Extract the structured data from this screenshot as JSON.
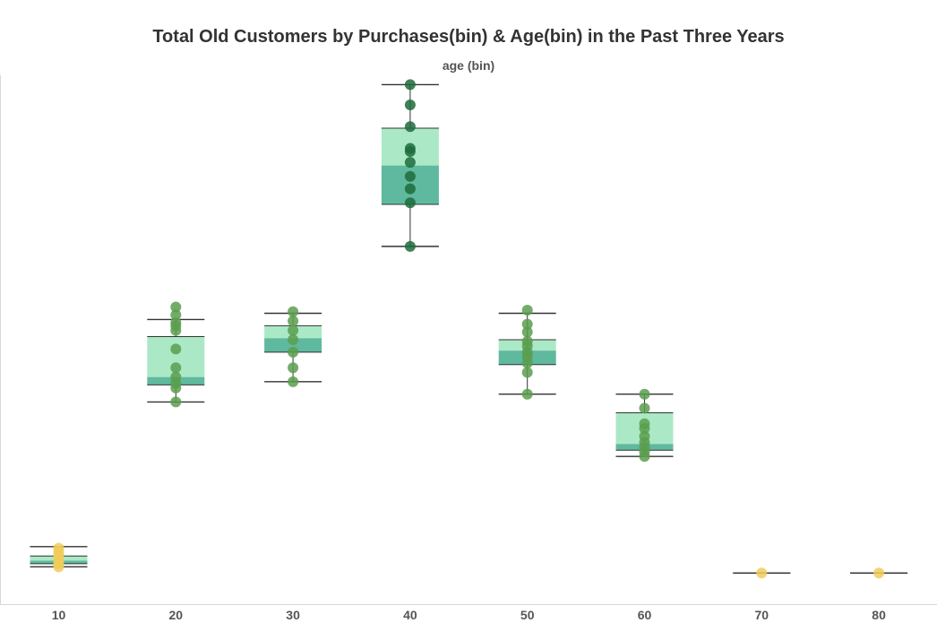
{
  "chart_data": {
    "type": "boxplot",
    "title": "Total Old Customers by Purchases(bin) & Age(bin) in the Past Three Years",
    "subtitle": "age (bin)",
    "xlabel": "",
    "ylabel": "",
    "categories": [
      "10",
      "20",
      "30",
      "40",
      "50",
      "60",
      "70",
      "80"
    ],
    "y_axis_labels_shown": false,
    "ylim": [
      0,
      34
    ],
    "boxes": [
      {
        "category": "10",
        "whisker_low": 2.4,
        "q1": 2.6,
        "median": 2.8,
        "q3": 3.1,
        "whisker_high": 3.7,
        "points": [
          2.4,
          2.6,
          2.8,
          3.0,
          3.2,
          3.4,
          3.6
        ]
      },
      {
        "category": "20",
        "whisker_low": 13.0,
        "q1": 14.1,
        "median": 14.6,
        "q3": 17.2,
        "whisker_high": 18.3,
        "points": [
          13.0,
          13.9,
          14.2,
          14.6,
          15.2,
          16.4,
          17.6,
          17.9,
          18.1,
          18.6,
          19.1
        ]
      },
      {
        "category": "30",
        "whisker_low": 14.3,
        "q1": 16.2,
        "median": 17.1,
        "q3": 17.9,
        "whisker_high": 18.7,
        "points": [
          14.3,
          15.2,
          16.2,
          17.0,
          17.6,
          18.2,
          18.8
        ]
      },
      {
        "category": "40",
        "whisker_low": 23.0,
        "q1": 25.7,
        "median": 28.2,
        "q3": 30.6,
        "whisker_high": 33.4,
        "points": [
          23.0,
          25.8,
          26.7,
          27.5,
          28.4,
          29.1,
          29.3,
          30.7,
          32.1,
          33.4
        ]
      },
      {
        "category": "50",
        "whisker_low": 13.5,
        "q1": 15.4,
        "median": 16.3,
        "q3": 17.0,
        "whisker_high": 18.7,
        "points": [
          13.5,
          14.9,
          15.5,
          15.9,
          16.2,
          16.6,
          16.9,
          17.5,
          18.0,
          18.9
        ]
      },
      {
        "category": "60",
        "whisker_low": 9.5,
        "q1": 9.9,
        "median": 10.3,
        "q3": 12.3,
        "whisker_high": 13.5,
        "points": [
          9.5,
          9.8,
          10.1,
          10.4,
          10.8,
          11.3,
          11.6,
          12.6,
          13.5
        ]
      },
      {
        "category": "70",
        "whisker_low": 2.0,
        "q1": 2.0,
        "median": 2.0,
        "q3": 2.0,
        "whisker_high": 2.0,
        "points": [
          2.0
        ]
      },
      {
        "category": "80",
        "whisker_low": 2.0,
        "q1": 2.0,
        "median": 2.0,
        "q3": 2.0,
        "whisker_high": 2.0,
        "points": [
          2.0
        ]
      }
    ],
    "colors": {
      "box_upper": "#abe9c6",
      "box_lower": "#5fb99e",
      "whisker": "#333333",
      "point_low": "#f0cc5a",
      "point_mid": "#5a9e4f",
      "point_high": "#1e6b3c",
      "axis": "#d6d6d6"
    },
    "grid": false,
    "legend": "none"
  }
}
